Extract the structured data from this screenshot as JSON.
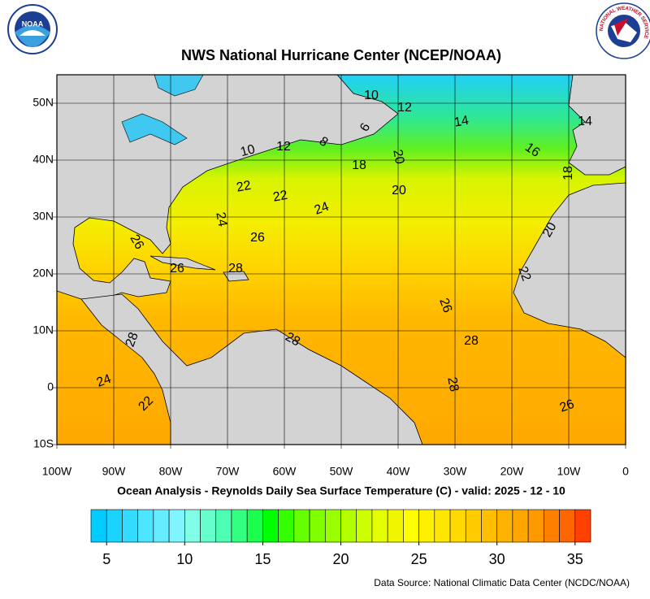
{
  "header": {
    "title": "NWS National Hurricane Center (NCEP/NOAA)",
    "noaa_logo": "NOAA",
    "nws_logo": "NATIONAL WEATHER SERVICE"
  },
  "map": {
    "type": "map",
    "xlim": [
      -100,
      0
    ],
    "ylim": [
      -10,
      55
    ],
    "xticks": [
      {
        "value": -100,
        "label": "100W"
      },
      {
        "value": -90,
        "label": "90W"
      },
      {
        "value": -80,
        "label": "80W"
      },
      {
        "value": -70,
        "label": "70W"
      },
      {
        "value": -60,
        "label": "60W"
      },
      {
        "value": -50,
        "label": "50W"
      },
      {
        "value": -40,
        "label": "40W"
      },
      {
        "value": -30,
        "label": "30W"
      },
      {
        "value": -20,
        "label": "20W"
      },
      {
        "value": -10,
        "label": "10W"
      },
      0
    ],
    "yticks": [
      {
        "value": -10,
        "label": "10S"
      },
      0,
      {
        "value": 10,
        "label": "10N"
      },
      {
        "value": 20,
        "label": "20N"
      },
      {
        "value": 30,
        "label": "30N"
      },
      {
        "value": 40,
        "label": "40N"
      },
      {
        "value": 50,
        "label": "50N"
      }
    ],
    "grid": true,
    "contour_labels": [
      10,
      12,
      14,
      14,
      16,
      8,
      6,
      10,
      12,
      18,
      20,
      18,
      22,
      22,
      20,
      24,
      24,
      26,
      26,
      20,
      28,
      26,
      22,
      26,
      28,
      28,
      28,
      28,
      24,
      22,
      26
    ],
    "subtitle": "Ocean Analysis - Reynolds Daily Sea Surface Temperature (C) - valid: 2025 - 12 - 10"
  },
  "colorbar": {
    "range": [
      4,
      36
    ],
    "ticks": [
      5,
      10,
      15,
      20,
      25,
      30,
      35
    ],
    "colors": [
      "#00ccff",
      "#1ad4ff",
      "#33dcff",
      "#4de4ff",
      "#66ecff",
      "#80f4ff",
      "#80ffe6",
      "#66ffcc",
      "#4dffb3",
      "#33ff80",
      "#1aff4d",
      "#00ff00",
      "#33ff00",
      "#66ff00",
      "#80ff00",
      "#99ff00",
      "#b3ff00",
      "#ccff00",
      "#e6ff00",
      "#f0f500",
      "#ffff00",
      "#fff000",
      "#ffe600",
      "#ffd900",
      "#ffcc00",
      "#ffbf00",
      "#ffb300",
      "#ffa600",
      "#ff9900",
      "#ff8000",
      "#ff6600",
      "#ff4000"
    ]
  },
  "footer": {
    "source": "Data Source: National Climatic Data Center (NCDC/NOAA)"
  }
}
